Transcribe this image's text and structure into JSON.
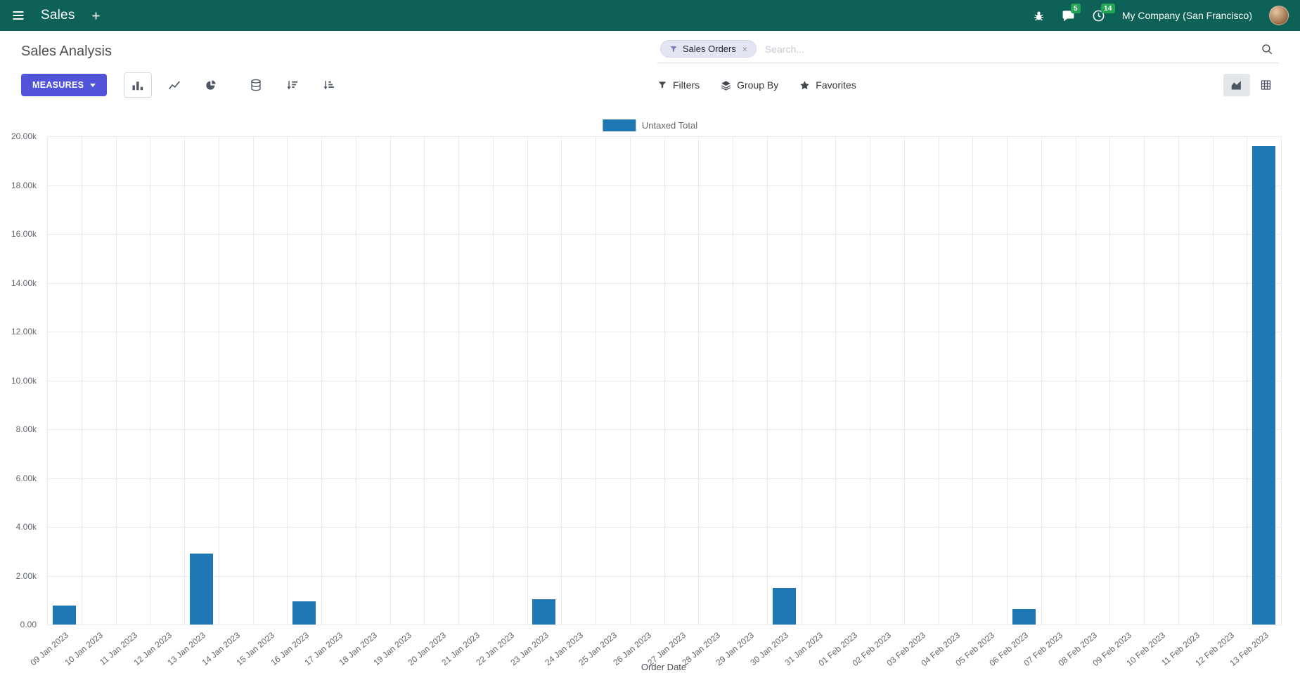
{
  "navbar": {
    "app_name": "Sales",
    "company": "My Company (San Francisco)",
    "messages_badge": "5",
    "activities_badge": "14"
  },
  "control_panel": {
    "breadcrumb": "Sales Analysis",
    "measures_label": "MEASURES",
    "search": {
      "facet": "Sales Orders",
      "facet_remove": "×",
      "placeholder": "Search..."
    },
    "buttons": {
      "filters": "Filters",
      "group_by": "Group By",
      "favorites": "Favorites"
    }
  },
  "icons": {
    "menu": "hamburger",
    "new": "plus",
    "debug": "bug",
    "messages": "chat-bubble",
    "activities": "clock",
    "search": "magnifier",
    "filter": "funnel",
    "group_by": "layers",
    "favorites": "star",
    "bar_chart": "bars",
    "line_chart": "line",
    "pie_chart": "pie",
    "stacked": "database",
    "sort_desc": "sort-descending",
    "sort_asc": "sort-ascending",
    "view_graph": "area-chart",
    "view_pivot": "grid"
  },
  "colors": {
    "navbar_bg": "#0e6157",
    "primary_button": "#5154d9",
    "bar": "#1f77b4",
    "badge": "#23a455"
  },
  "chart_data": {
    "type": "bar",
    "title": "",
    "legend": [
      "Untaxed Total"
    ],
    "legend_position": "top",
    "grid": true,
    "series_color": "#1f77b4",
    "xlabel": "Order Date",
    "ylabel": "",
    "ylim": [
      0,
      20000
    ],
    "y_ticks": [
      "0.00",
      "2.00k",
      "4.00k",
      "6.00k",
      "8.00k",
      "10.00k",
      "12.00k",
      "14.00k",
      "16.00k",
      "18.00k",
      "20.00k"
    ],
    "categories": [
      "09 Jan 2023",
      "10 Jan 2023",
      "11 Jan 2023",
      "12 Jan 2023",
      "13 Jan 2023",
      "14 Jan 2023",
      "15 Jan 2023",
      "16 Jan 2023",
      "17 Jan 2023",
      "18 Jan 2023",
      "19 Jan 2023",
      "20 Jan 2023",
      "21 Jan 2023",
      "22 Jan 2023",
      "23 Jan 2023",
      "24 Jan 2023",
      "25 Jan 2023",
      "26 Jan 2023",
      "27 Jan 2023",
      "28 Jan 2023",
      "29 Jan 2023",
      "30 Jan 2023",
      "31 Jan 2023",
      "01 Feb 2023",
      "02 Feb 2023",
      "03 Feb 2023",
      "04 Feb 2023",
      "05 Feb 2023",
      "06 Feb 2023",
      "07 Feb 2023",
      "08 Feb 2023",
      "09 Feb 2023",
      "10 Feb 2023",
      "11 Feb 2023",
      "12 Feb 2023",
      "13 Feb 2023"
    ],
    "values": [
      780,
      0,
      0,
      0,
      2900,
      0,
      0,
      950,
      0,
      0,
      0,
      0,
      0,
      0,
      1050,
      0,
      0,
      0,
      0,
      0,
      0,
      1500,
      0,
      0,
      0,
      0,
      0,
      0,
      620,
      0,
      0,
      0,
      0,
      0,
      0,
      19600
    ]
  }
}
